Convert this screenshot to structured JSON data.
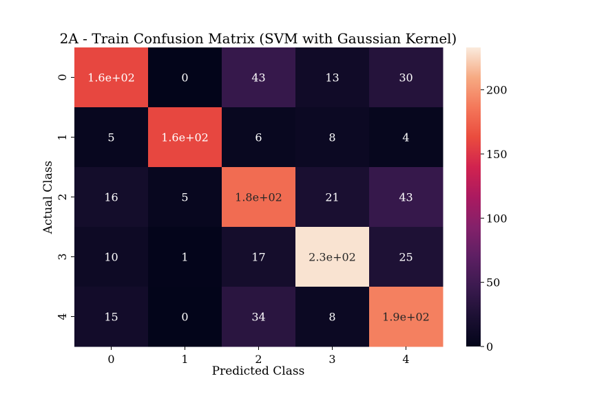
{
  "chart_data": {
    "type": "heatmap",
    "title": "2A - Train Confusion Matrix (SVM with Gaussian Kernel)",
    "xlabel": "Predicted Class",
    "ylabel": "Actual Class",
    "x_categories": [
      "0",
      "1",
      "2",
      "3",
      "4"
    ],
    "y_categories": [
      "0",
      "1",
      "2",
      "3",
      "4"
    ],
    "values": [
      [
        160,
        0,
        43,
        13,
        30
      ],
      [
        5,
        160,
        6,
        8,
        4
      ],
      [
        16,
        5,
        180,
        21,
        43
      ],
      [
        10,
        1,
        17,
        230,
        25
      ],
      [
        15,
        0,
        34,
        8,
        190
      ]
    ],
    "cell_labels": [
      [
        "1.6e+02",
        "0",
        "43",
        "13",
        "30"
      ],
      [
        "5",
        "1.6e+02",
        "6",
        "8",
        "4"
      ],
      [
        "16",
        "5",
        "1.8e+02",
        "21",
        "43"
      ],
      [
        "10",
        "1",
        "17",
        "2.3e+02",
        "25"
      ],
      [
        "15",
        "0",
        "34",
        "8",
        "1.9e+02"
      ]
    ],
    "colorbar": {
      "range": [
        0,
        233
      ],
      "ticks": [
        0,
        50,
        100,
        150,
        200
      ],
      "colormap": "rocket"
    },
    "grid": false,
    "legend": "colorbar-right"
  }
}
